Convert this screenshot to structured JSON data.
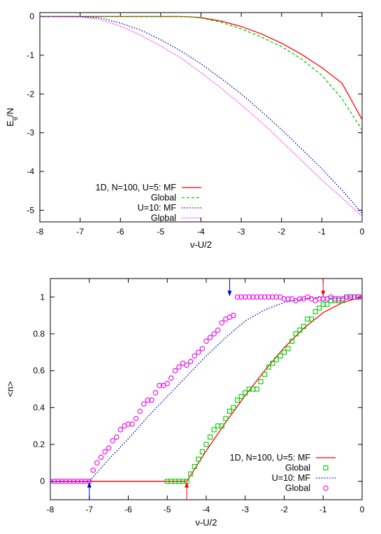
{
  "chart_data": [
    {
      "type": "line",
      "title": "",
      "xlabel": "ν-U/2",
      "ylabel": "E_g/N",
      "ylabel_main": "E",
      "ylabel_sub": "g",
      "ylabel_tail": "/N",
      "xlim": [
        -8,
        0
      ],
      "ylim": [
        -5.3,
        0.1
      ],
      "xticks": [
        -8,
        -7,
        -6,
        -5,
        -4,
        -3,
        -2,
        -1,
        0
      ],
      "yticks": [
        0,
        -1,
        -2,
        -3,
        -4,
        -5
      ],
      "grid": false,
      "legend_position": "bottom-left",
      "series": [
        {
          "name": "1D, N=100, U=5: MF",
          "color": "#ff0000",
          "style": "solid",
          "x": [
            -8,
            -4.5,
            -4.25,
            -4,
            -3.5,
            -3,
            -2.5,
            -2,
            -1.5,
            -1,
            -0.5,
            0
          ],
          "y": [
            0,
            0,
            -0.01,
            -0.03,
            -0.12,
            -0.26,
            -0.45,
            -0.69,
            -0.98,
            -1.32,
            -1.72,
            -2.66
          ]
        },
        {
          "name": "Global",
          "color": "#00cc00",
          "style": "dashed",
          "x": [
            -8,
            -4.5,
            -4.25,
            -4,
            -3.5,
            -3,
            -2.5,
            -2,
            -1.5,
            -1,
            -0.5,
            0
          ],
          "y": [
            0,
            0,
            -0.01,
            -0.04,
            -0.15,
            -0.32,
            -0.53,
            -0.78,
            -1.1,
            -1.52,
            -2.12,
            -2.93
          ]
        },
        {
          "name": "U=10: MF",
          "color": "#0000cc",
          "style": "dotted",
          "x": [
            -8,
            -7,
            -6.5,
            -6,
            -5.5,
            -5,
            -4.5,
            -4,
            -3.5,
            -3,
            -2.5,
            -2,
            -1.5,
            -1,
            -0.5,
            0
          ],
          "y": [
            0,
            0,
            -0.04,
            -0.17,
            -0.35,
            -0.6,
            -0.89,
            -1.22,
            -1.6,
            -2.0,
            -2.45,
            -2.92,
            -3.42,
            -3.93,
            -4.48,
            -5.08
          ]
        },
        {
          "name": "Global",
          "color": "#ee00ee",
          "style": "dotted-fine",
          "x": [
            -8,
            -7,
            -6.5,
            -6,
            -5.5,
            -5,
            -4.5,
            -4,
            -3.5,
            -3,
            -2.5,
            -2,
            -1.5,
            -1,
            -0.5,
            0
          ],
          "y": [
            0,
            -0.01,
            -0.08,
            -0.25,
            -0.48,
            -0.76,
            -1.07,
            -1.45,
            -1.85,
            -2.28,
            -2.73,
            -3.22,
            -3.72,
            -4.22,
            -4.68,
            -5.16
          ]
        }
      ]
    },
    {
      "type": "line",
      "title": "",
      "xlabel": "ν-U/2",
      "ylabel": "<n>",
      "xlim": [
        -8,
        0
      ],
      "ylim": [
        -0.1,
        1.1
      ],
      "xticks": [
        -8,
        -7,
        -6,
        -5,
        -4,
        -3,
        -2,
        -1,
        0
      ],
      "yticks": [
        0,
        0.2,
        0.4,
        0.6,
        0.8,
        1
      ],
      "grid": false,
      "legend_position": "bottom-right",
      "arrows": [
        {
          "x": -7,
          "y": 0,
          "direction": "up",
          "color": "#0000cc"
        },
        {
          "x": -3.4,
          "y": 1,
          "direction": "down",
          "color": "#0000cc"
        },
        {
          "x": -4.5,
          "y": 0,
          "direction": "up",
          "color": "#ff0000"
        },
        {
          "x": -1,
          "y": 1,
          "direction": "down",
          "color": "#ff0000"
        }
      ],
      "series": [
        {
          "name": "1D, N=100, U=5: MF",
          "color": "#ff0000",
          "style": "solid",
          "x": [
            -8,
            -4.5,
            -4.0,
            -3.5,
            -3.0,
            -2.5,
            -2.0,
            -1.5,
            -1.0,
            -0.5,
            0
          ],
          "y": [
            0,
            0,
            0.165,
            0.32,
            0.465,
            0.6,
            0.725,
            0.83,
            0.915,
            0.97,
            1.0
          ]
        },
        {
          "name": "Global",
          "color": "#00cc00",
          "style": "square-markers",
          "x": [
            -5.0,
            -4.9,
            -4.8,
            -4.7,
            -4.6,
            -4.5,
            -4.4,
            -4.3,
            -4.2,
            -4.1,
            -4.0,
            -3.9,
            -3.8,
            -3.7,
            -3.6,
            -3.5,
            -3.4,
            -3.3,
            -3.2,
            -3.1,
            -3.0,
            -2.9,
            -2.8,
            -2.7,
            -2.6,
            -2.5,
            -2.4,
            -2.3,
            -2.2,
            -2.1,
            -2.0,
            -1.9,
            -1.8,
            -1.7,
            -1.6,
            -1.5,
            -1.4,
            -1.3,
            -1.2,
            -1.1,
            -1.0,
            -0.9,
            -0.8,
            -0.7,
            -0.6,
            -0.5,
            -0.4,
            -0.3,
            -0.2,
            -0.1,
            0.0
          ],
          "y": [
            0,
            0,
            0,
            0,
            0,
            0,
            0.04,
            0.08,
            0.12,
            0.16,
            0.2,
            0.24,
            0.28,
            0.3,
            0.3,
            0.34,
            0.38,
            0.4,
            0.44,
            0.46,
            0.48,
            0.5,
            0.5,
            0.5,
            0.54,
            0.58,
            0.62,
            0.64,
            0.66,
            0.68,
            0.7,
            0.72,
            0.76,
            0.8,
            0.82,
            0.84,
            0.88,
            0.88,
            0.92,
            0.94,
            0.96,
            0.96,
            0.98,
            0.98,
            0.98,
            0.98,
            1.0,
            1.0,
            1.0,
            1.0,
            1.0
          ]
        },
        {
          "name": "U=10: MF",
          "color": "#0000cc",
          "style": "dotted",
          "x": [
            -8,
            -7,
            -6.5,
            -6.0,
            -5.5,
            -5.0,
            -4.5,
            -4.0,
            -3.5,
            -3.0,
            -2.5,
            -2.0,
            -1.5,
            -1.0,
            -0.5,
            0
          ],
          "y": [
            0,
            0,
            0.12,
            0.23,
            0.35,
            0.46,
            0.57,
            0.68,
            0.78,
            0.87,
            0.93,
            0.97,
            0.99,
            1.0,
            1.0,
            1.0
          ]
        },
        {
          "name": "Global",
          "color": "#ee00ee",
          "style": "circle-markers",
          "x": [
            -8.0,
            -7.9,
            -7.8,
            -7.7,
            -7.6,
            -7.5,
            -7.4,
            -7.3,
            -7.2,
            -7.1,
            -7.0,
            -6.9,
            -6.8,
            -6.7,
            -6.6,
            -6.5,
            -6.4,
            -6.3,
            -6.2,
            -6.1,
            -6.0,
            -5.9,
            -5.8,
            -5.7,
            -5.6,
            -5.5,
            -5.4,
            -5.3,
            -5.2,
            -5.1,
            -5.0,
            -4.9,
            -4.8,
            -4.7,
            -4.6,
            -4.5,
            -4.4,
            -4.3,
            -4.2,
            -4.1,
            -4.0,
            -3.9,
            -3.8,
            -3.7,
            -3.6,
            -3.5,
            -3.4,
            -3.3,
            -3.2,
            -3.1,
            -3.0,
            -2.9,
            -2.8,
            -2.7,
            -2.6,
            -2.5,
            -2.4,
            -2.3,
            -2.2,
            -2.1,
            -2.0,
            -1.9,
            -1.8,
            -1.7,
            -1.6,
            -1.5,
            -1.4,
            -1.3,
            -1.2,
            -1.1,
            -1.0,
            -0.9,
            -0.8,
            -0.7,
            -0.6,
            -0.5,
            -0.4,
            -0.3,
            -0.2,
            -0.1,
            0.0
          ],
          "y": [
            0,
            0,
            0,
            0,
            0,
            0,
            0,
            0,
            0,
            0,
            0,
            0.06,
            0.1,
            0.13,
            0.16,
            0.18,
            0.22,
            0.24,
            0.28,
            0.3,
            0.31,
            0.31,
            0.34,
            0.38,
            0.42,
            0.44,
            0.44,
            0.48,
            0.52,
            0.52,
            0.53,
            0.56,
            0.6,
            0.62,
            0.64,
            0.63,
            0.65,
            0.68,
            0.7,
            0.72,
            0.76,
            0.78,
            0.8,
            0.82,
            0.86,
            0.88,
            0.89,
            0.9,
            1.0,
            1.0,
            1.0,
            1.0,
            1.0,
            1.0,
            1.0,
            1.0,
            1.0,
            1.0,
            1.0,
            1.0,
            0.99,
            0.99,
            0.99,
            0.98,
            0.99,
            0.99,
            1.0,
            0.99,
            0.98,
            0.99,
            0.99,
            0.99,
            1.0,
            0.99,
            0.99,
            0.99,
            1.0,
            1.0,
            1.0,
            1.0,
            1.0
          ]
        }
      ]
    }
  ]
}
